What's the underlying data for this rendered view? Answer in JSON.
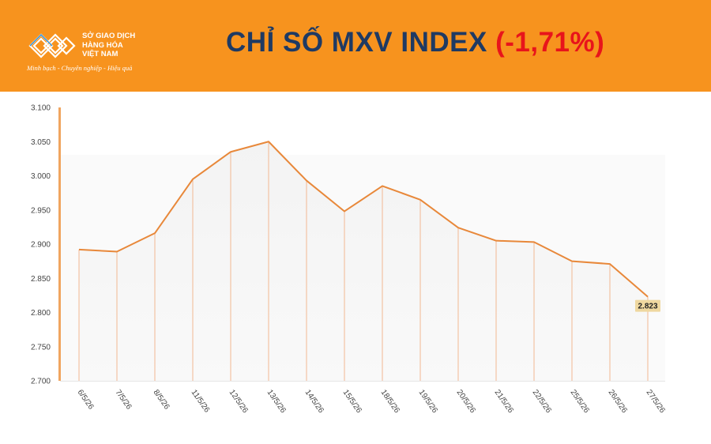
{
  "header": {
    "logo_name_lines": [
      "SỞ GIAO DỊCH",
      "HÀNG HÓA",
      "VIỆT NAM"
    ],
    "logo_tagline": "Minh bạch - Chuyên nghiệp - Hiệu quả",
    "title_main": "CHỈ SỐ MXV INDEX",
    "title_change": "(-1,71%)",
    "brand_color": "#f7931e",
    "title_color": "#1f3a63",
    "change_color": "#e8141b"
  },
  "chart_data": {
    "type": "line",
    "title": "CHỈ SỐ MXV INDEX (-1,71%)",
    "categories": [
      "6/5/26",
      "7/5/26",
      "8/5/26",
      "11/5/26",
      "12/5/26",
      "13/5/26",
      "14/5/26",
      "15/5/26",
      "18/5/26",
      "19/5/26",
      "20/5/26",
      "21/5/26",
      "22/5/26",
      "25/5/26",
      "26/5/26",
      "27/5/26"
    ],
    "values": [
      2892,
      2889,
      2916,
      2995,
      3035,
      3050,
      2993,
      2948,
      2985,
      2965,
      2924,
      2905,
      2903,
      2875,
      2871,
      2823
    ],
    "y_tick_labels": [
      "2.700",
      "2.750",
      "2.800",
      "2.850",
      "2.900",
      "2.950",
      "3.000",
      "3.050",
      "3.100"
    ],
    "ylim": [
      2700,
      3100
    ],
    "last_value_label": "2.823",
    "line_color": "#e8883a",
    "grid": false
  }
}
